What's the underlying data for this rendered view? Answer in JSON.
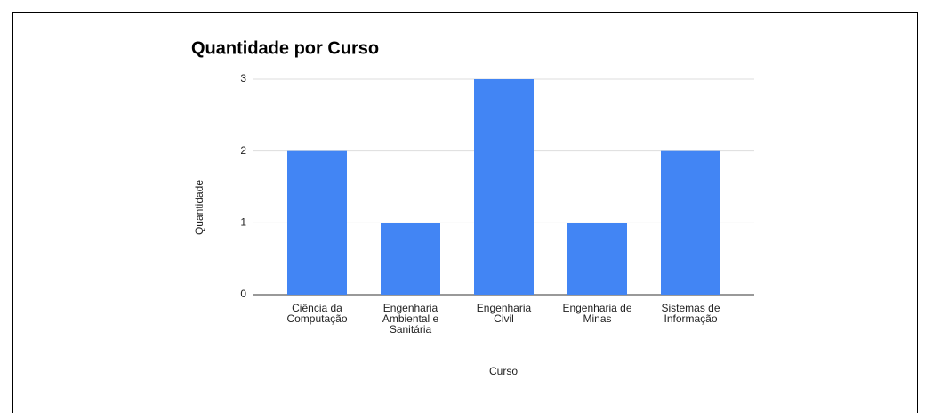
{
  "chart_data": {
    "type": "bar",
    "title": "Quantidade por Curso",
    "categories": [
      "Ciência da Computação",
      "Engenharia Ambiental e Sanitária",
      "Engenharia Civil",
      "Engenharia de Minas",
      "Sistemas de Informação"
    ],
    "values": [
      2,
      1,
      3,
      1,
      2
    ],
    "color": "#4285f4",
    "ylim": [
      0,
      3
    ],
    "yticks": [
      0,
      1,
      2,
      3
    ],
    "grid": true,
    "x_label": "Curso",
    "y_label": "Quantidade"
  }
}
